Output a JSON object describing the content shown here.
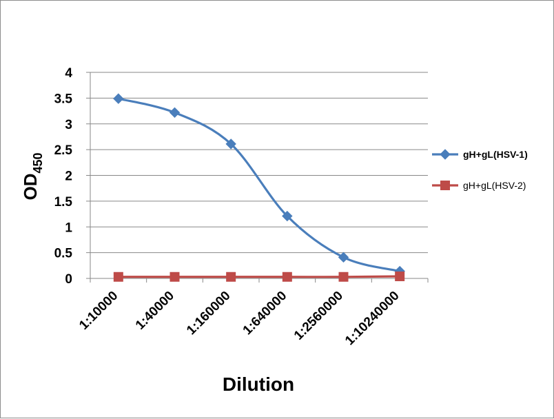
{
  "chart_data": {
    "type": "line",
    "xlabel": "Dilution",
    "ylabel": "OD",
    "ylabel_subscript": "450",
    "categories": [
      "1:10000",
      "1:40000",
      "1:160000",
      "1:640000",
      "1:2560000",
      "1:10240000"
    ],
    "ylim": [
      0,
      4
    ],
    "yticks": [
      "0",
      "0.5",
      "1",
      "1.5",
      "2",
      "2.5",
      "3",
      "3.5",
      "4"
    ],
    "grid": true,
    "legend_position": "right",
    "series": [
      {
        "name": "gH+gL(HSV-1)",
        "color": "#4a7ebb",
        "marker": "diamond",
        "bold": true,
        "values": [
          3.49,
          3.22,
          2.61,
          1.21,
          0.41,
          0.14
        ]
      },
      {
        "name": "gH+gL(HSV-2)",
        "color": "#be4b48",
        "marker": "square",
        "bold": false,
        "values": [
          0.03,
          0.03,
          0.03,
          0.03,
          0.03,
          0.04
        ]
      }
    ]
  }
}
